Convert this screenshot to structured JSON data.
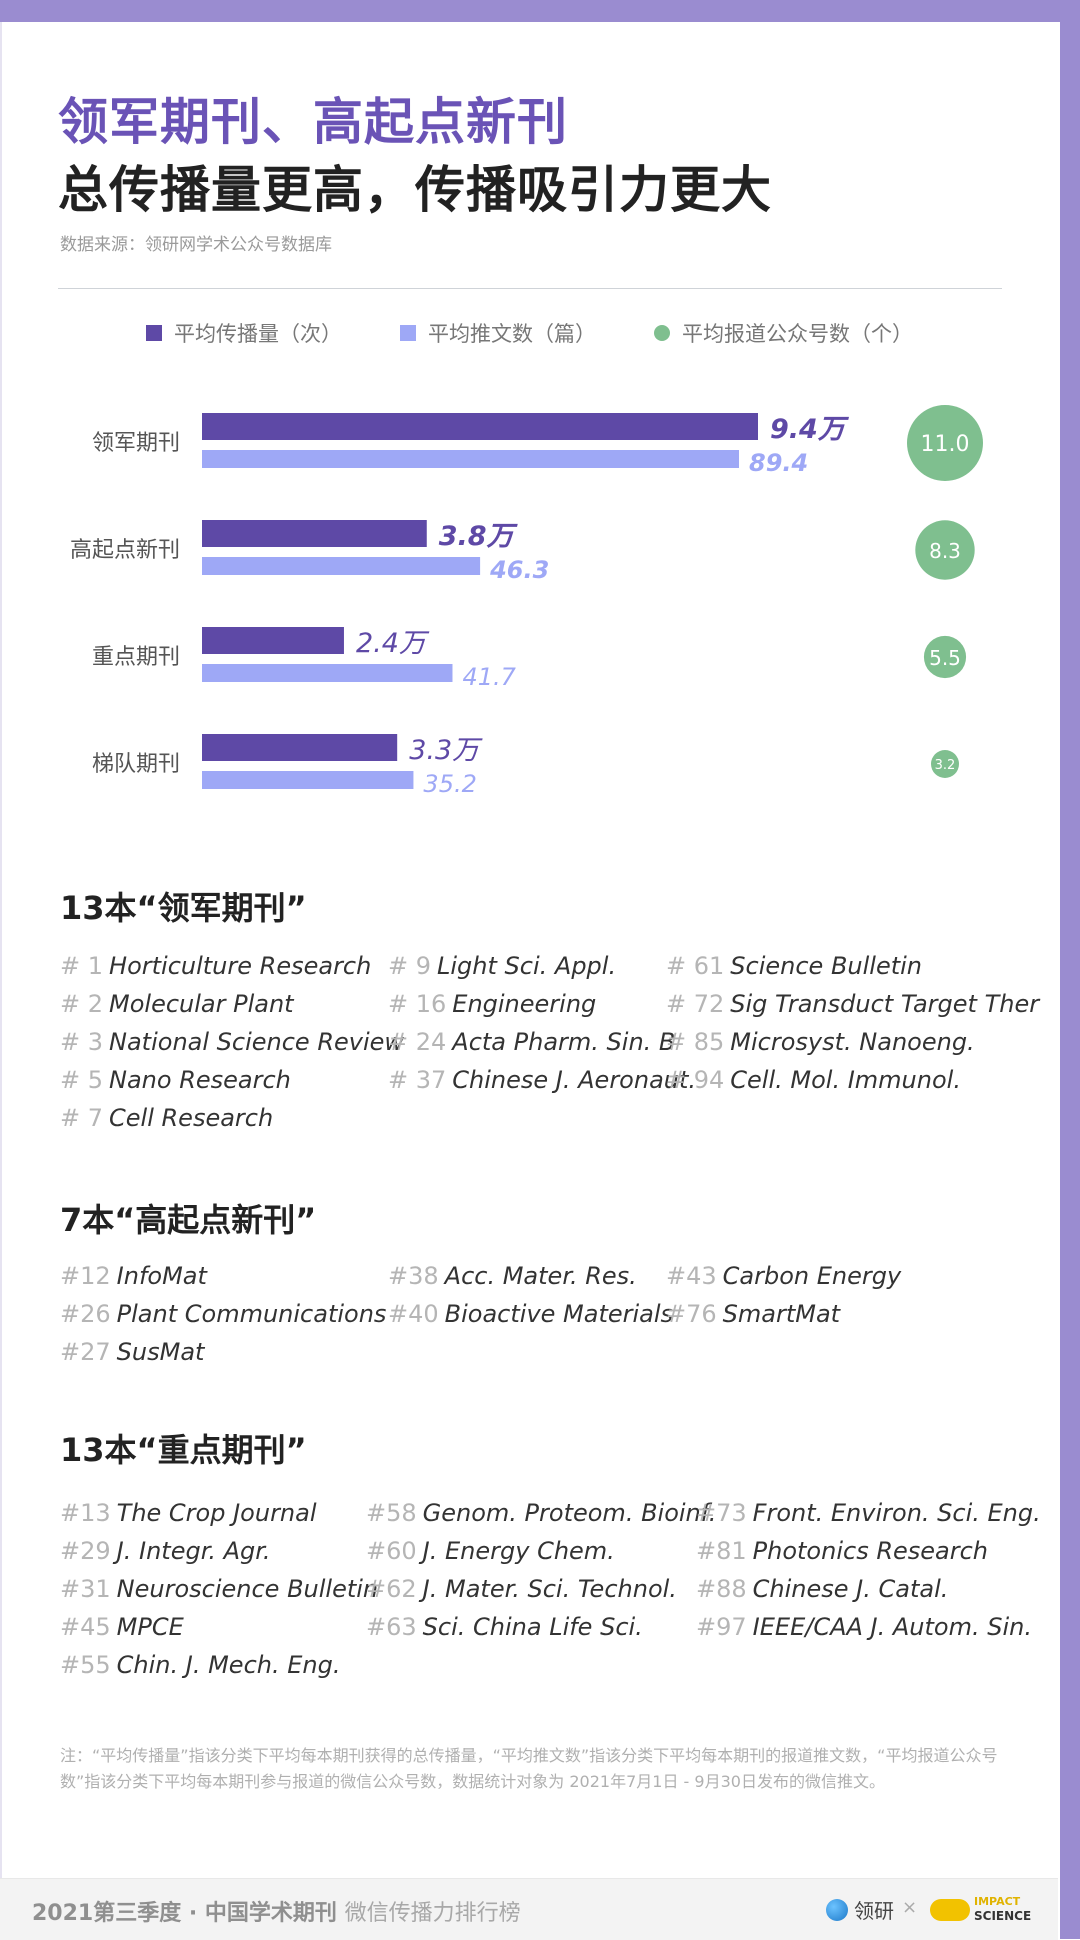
{
  "header": {
    "title_line1": "领军期刊、高起点新刊",
    "title_line2": "总传播量更高，传播吸引力更大",
    "source": "数据来源：领研网学术公众号数据库"
  },
  "legend": [
    {
      "label": "平均传播量（次）",
      "color": "#5e49a6",
      "shape": "square"
    },
    {
      "label": "平均推文数（篇）",
      "color": "#9ea8f6",
      "shape": "square"
    },
    {
      "label": "平均报道公众号数（个）",
      "color": "#7fbf8f",
      "shape": "circle"
    }
  ],
  "chart_data": {
    "type": "bar",
    "orientation": "horizontal",
    "categories": [
      "领军期刊",
      "高起点新刊",
      "重点期刊",
      "梯队期刊"
    ],
    "series": [
      {
        "name": "平均传播量（次）",
        "values": [
          94000,
          38000,
          24000,
          33000
        ],
        "labels": [
          "9.4万",
          "3.8万",
          "2.4万",
          "3.3万"
        ],
        "color": "#5e49a6"
      },
      {
        "name": "平均推文数（篇）",
        "values": [
          89.4,
          46.3,
          41.7,
          35.2
        ],
        "labels": [
          "89.4",
          "46.3",
          "41.7",
          "35.2"
        ],
        "color": "#9ea8f6"
      },
      {
        "name": "平均报道公众号数（个）",
        "values": [
          11.0,
          8.3,
          5.5,
          3.2
        ],
        "labels": [
          "11.0",
          "8.3",
          "5.5",
          "3.2"
        ],
        "color": "#7fbf8f"
      }
    ],
    "bold_labels": [
      true,
      true,
      false,
      false
    ]
  },
  "sections": [
    {
      "title": "13本“领军期刊”",
      "items": [
        {
          "rank": "# 1",
          "name": "Horticulture Research"
        },
        {
          "rank": "# 2",
          "name": "Molecular Plant"
        },
        {
          "rank": "# 3",
          "name": "National Science Review"
        },
        {
          "rank": "# 5",
          "name": "Nano Research"
        },
        {
          "rank": "# 7",
          "name": "Cell Research"
        },
        {
          "rank": "# 9",
          "name": "Light Sci. Appl."
        },
        {
          "rank": "# 16",
          "name": "Engineering"
        },
        {
          "rank": "# 24",
          "name": "Acta Pharm. Sin. B"
        },
        {
          "rank": "# 37",
          "name": "Chinese J. Aeronaut."
        },
        {
          "rank": "# 61",
          "name": "Science Bulletin"
        },
        {
          "rank": "# 72",
          "name": "Sig Transduct Target Ther"
        },
        {
          "rank": "# 85",
          "name": "Microsyst. Nanoeng."
        },
        {
          "rank": "# 94",
          "name": "Cell. Mol. Immunol."
        }
      ]
    },
    {
      "title": "7本“高起点新刊”",
      "items": [
        {
          "rank": "#12",
          "name": "InfoMat"
        },
        {
          "rank": "#26",
          "name": "Plant Communications"
        },
        {
          "rank": "#27",
          "name": "SusMat"
        },
        {
          "rank": "#38",
          "name": "Acc. Mater. Res."
        },
        {
          "rank": "#40",
          "name": "Bioactive Materials"
        },
        {
          "rank": "#43",
          "name": "Carbon Energy"
        },
        {
          "rank": "#76",
          "name": "SmartMat"
        }
      ]
    },
    {
      "title": "13本“重点期刊”",
      "items": [
        {
          "rank": "#13",
          "name": "The Crop Journal"
        },
        {
          "rank": "#29",
          "name": "J. Integr. Agr."
        },
        {
          "rank": "#31",
          "name": "Neuroscience Bulletin"
        },
        {
          "rank": "#45",
          "name": "MPCE"
        },
        {
          "rank": "#55",
          "name": "Chin. J. Mech. Eng."
        },
        {
          "rank": "#58",
          "name": "Genom. Proteom. Bioinf."
        },
        {
          "rank": "#60",
          "name": "J. Energy Chem."
        },
        {
          "rank": "#62",
          "name": "J. Mater. Sci. Technol."
        },
        {
          "rank": "#63",
          "name": "Sci. China Life Sci."
        },
        {
          "rank": "#73",
          "name": "Front. Environ. Sci. Eng."
        },
        {
          "rank": "#81",
          "name": "Photonics Research"
        },
        {
          "rank": "#88",
          "name": "Chinese J. Catal."
        },
        {
          "rank": "#97",
          "name": "IEEE/CAA J. Autom. Sin."
        }
      ]
    }
  ],
  "note": "注：“平均传播量”指该分类下平均每本期刊获得的总传播量，“平均推文数”指该分类下平均每本期刊的报道推文数，“平均报道公众号数”指该分类下平均每本期刊参与报道的微信公众号数，数据统计对象为 2021年7月1日 - 9月30日发布的微信推文。",
  "footer": {
    "brand_bold": "2021第三季度 · 中国学术期刊",
    "brand_light": "微信传播力排行榜",
    "logo_text": "领研",
    "separator": "×",
    "partner_line1": "IMPACT",
    "partner_line2": "SCIENCE"
  }
}
